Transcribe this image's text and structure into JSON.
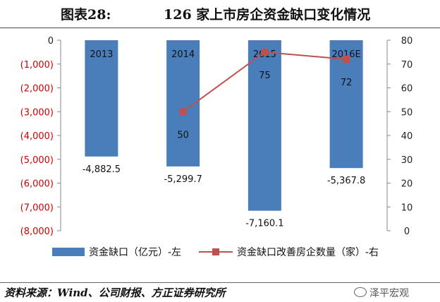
{
  "figure": {
    "label": "图表28:",
    "title": "126 家上市房企资金缺口变化情况"
  },
  "chart_data": {
    "type": "bar",
    "categories": [
      "2013",
      "2014",
      "2015",
      "2016E"
    ],
    "series": [
      {
        "name": "资金缺口（亿元）-左",
        "kind": "bar",
        "axis": "left",
        "color": "#4a7ebb",
        "values": [
          -4882.5,
          -5299.7,
          -7160.1,
          -5367.8
        ],
        "labels": [
          "-4,882.5",
          "-5,299.7",
          "-7,160.1",
          "-5,367.8"
        ]
      },
      {
        "name": "资金缺口改善房企数量（家）-右",
        "kind": "line",
        "axis": "right",
        "color": "#c0504d",
        "values": [
          null,
          50,
          75,
          72
        ],
        "labels": [
          "",
          "50",
          "75",
          "72"
        ]
      }
    ],
    "left_axis": {
      "range": [
        -8000,
        0
      ],
      "ticks": [
        0,
        -1000,
        -2000,
        -3000,
        -4000,
        -5000,
        -6000,
        -7000,
        -8000
      ],
      "tick_labels": [
        "0",
        "(1,000)",
        "(2,000)",
        "(3,000)",
        "(4,000)",
        "(5,000)",
        "(6,000)",
        "(7,000)",
        "(8,000)"
      ],
      "negative_color": "#d00000"
    },
    "right_axis": {
      "range": [
        0,
        80
      ],
      "ticks": [
        0,
        10,
        20,
        30,
        40,
        50,
        60,
        70,
        80
      ],
      "tick_labels": [
        "0",
        "10",
        "20",
        "30",
        "40",
        "50",
        "60",
        "70",
        "80"
      ]
    },
    "grid": false,
    "legend_position": "bottom"
  },
  "source": "资料来源：Wind、公司财报、方正证券研究所",
  "watermark": "泽平宏观"
}
